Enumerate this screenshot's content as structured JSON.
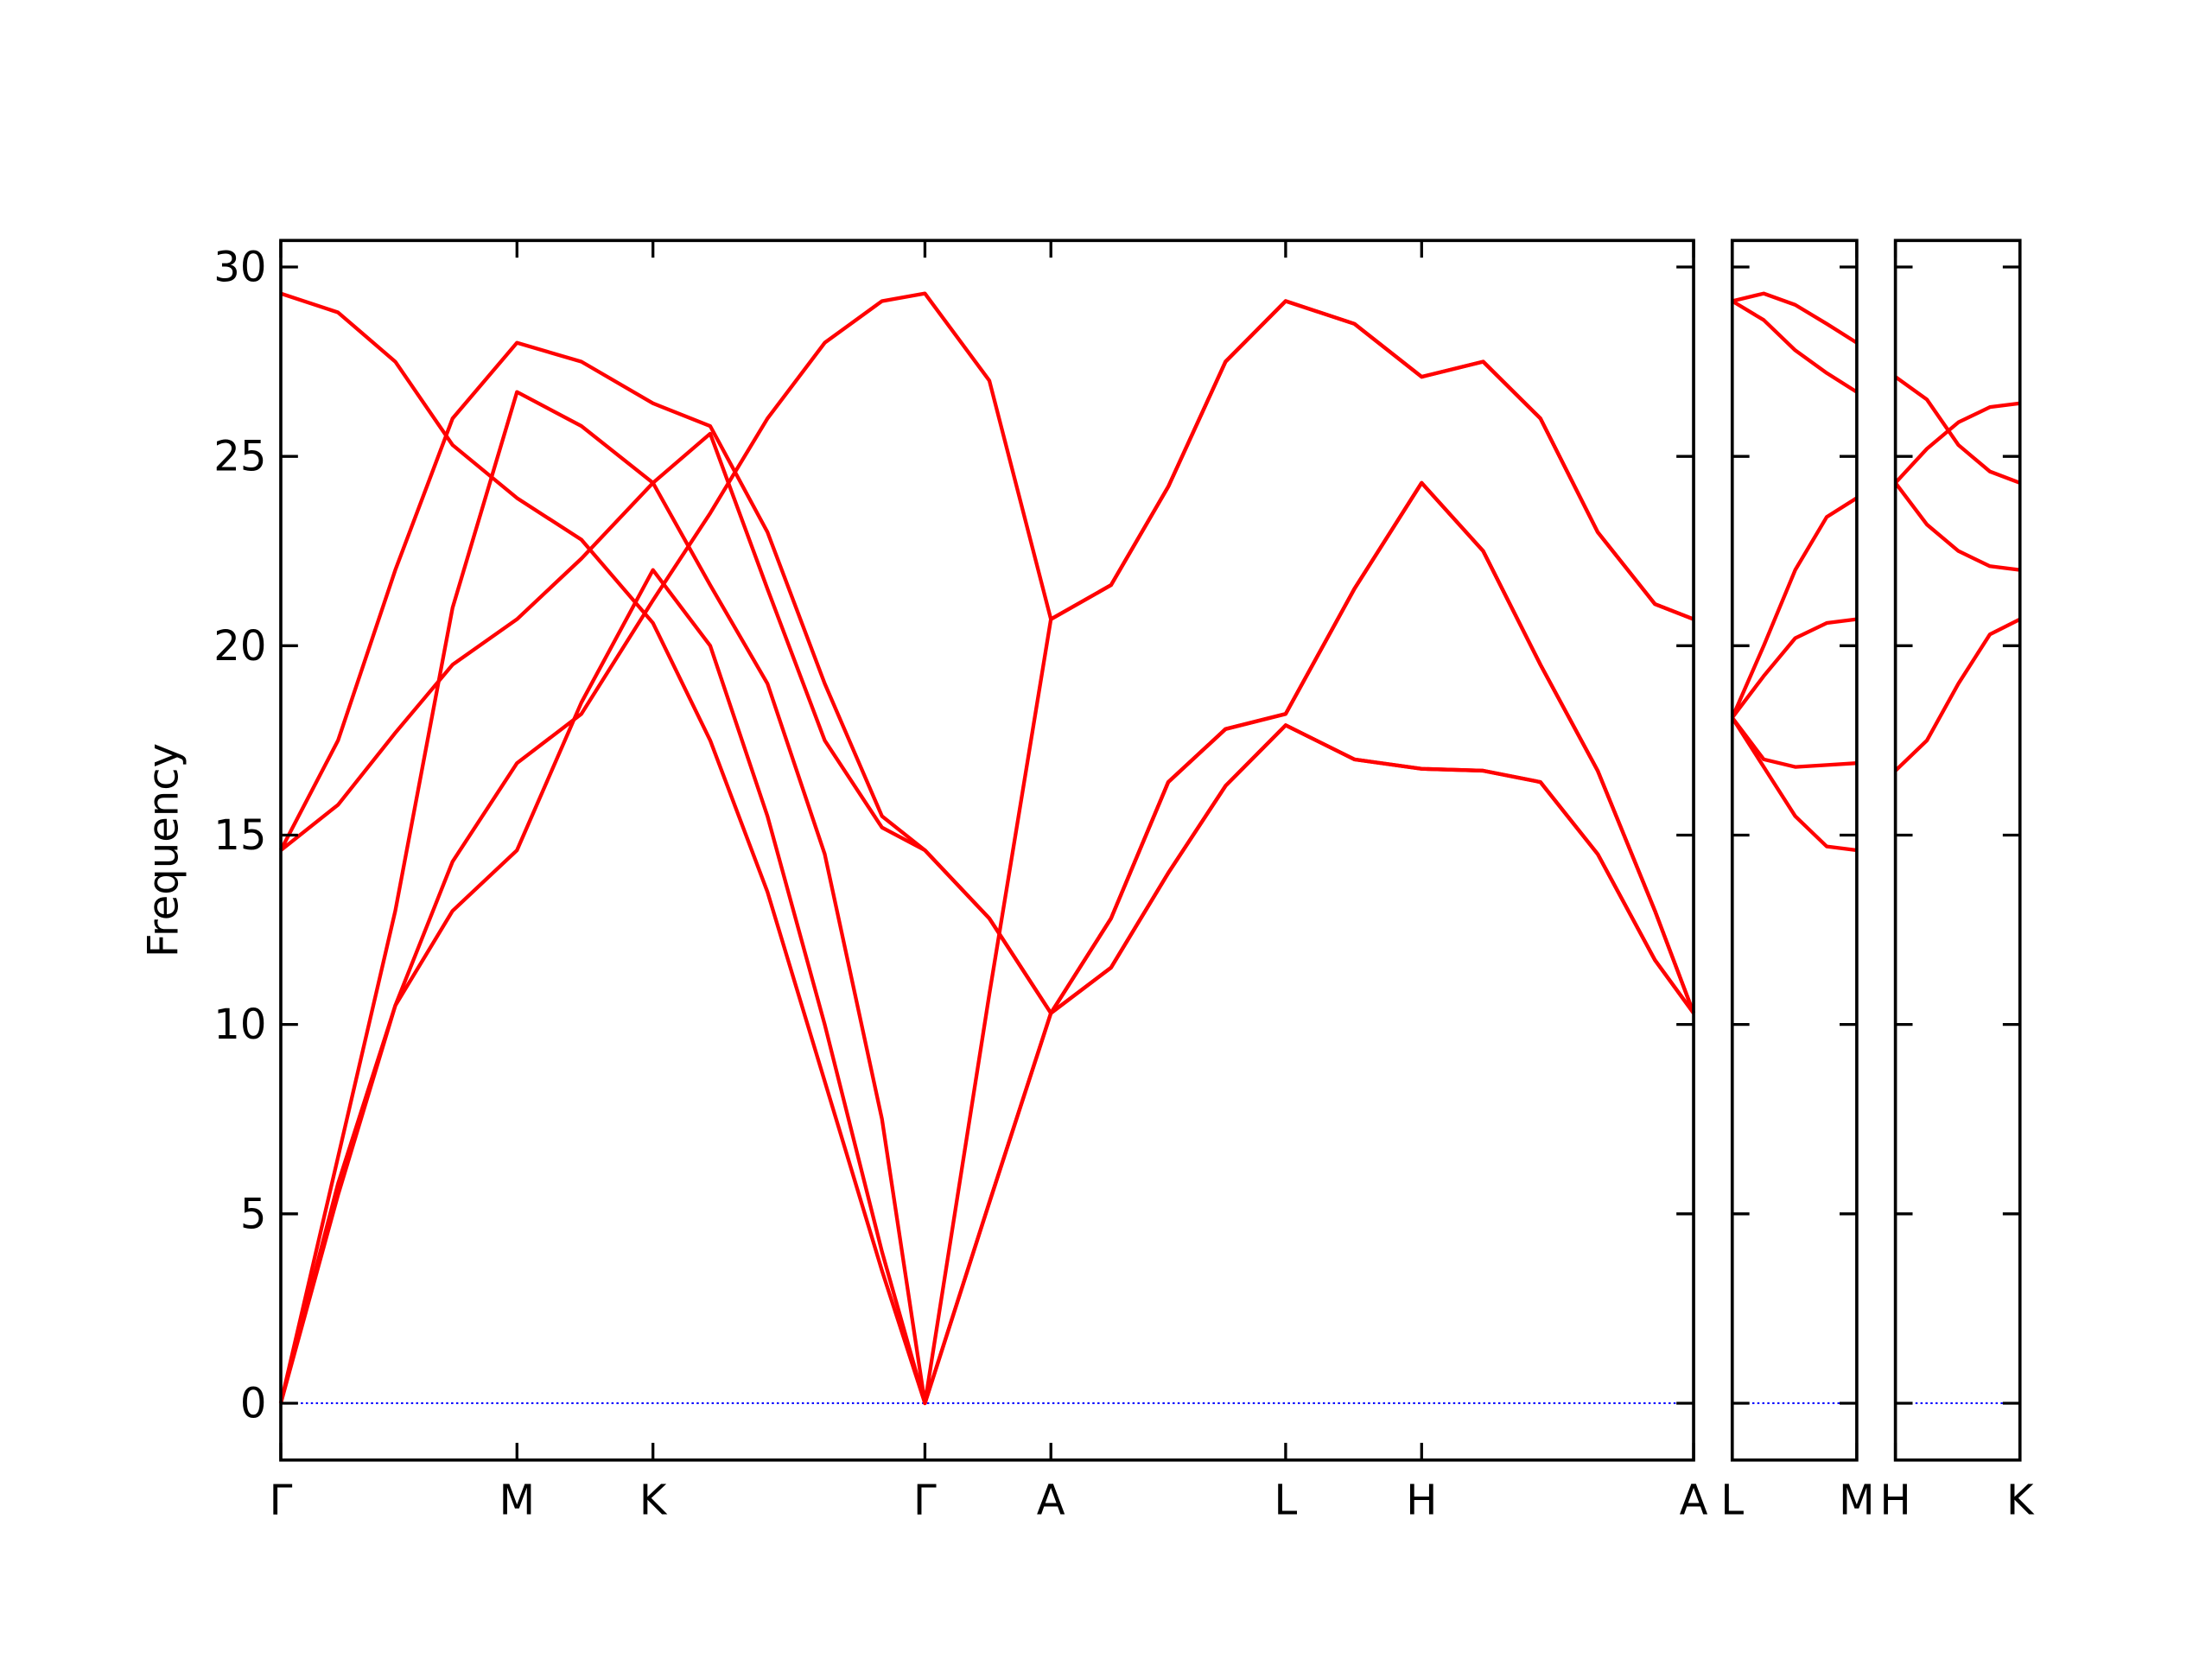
{
  "chart_data": [
    {
      "type": "line",
      "ylabel": "Frequency",
      "ylim": [
        -1.5,
        30.7
      ],
      "yticks": [
        0,
        5,
        10,
        15,
        20,
        25,
        30
      ],
      "xlim": [
        0,
        987
      ],
      "xticks": [
        {
          "value": 0,
          "label": "Γ"
        },
        {
          "value": 165,
          "label": "M"
        },
        {
          "value": 260,
          "label": "K"
        },
        {
          "value": 450,
          "label": "Γ"
        },
        {
          "value": 538,
          "label": "A"
        },
        {
          "value": 702,
          "label": "L"
        },
        {
          "value": 797,
          "label": "H"
        },
        {
          "value": 987,
          "label": "A"
        }
      ],
      "hline": {
        "value": 0,
        "color": "#0000ff"
      },
      "x": [
        0,
        40,
        80,
        120,
        165,
        210,
        260,
        300,
        340,
        380,
        420,
        450,
        495,
        538,
        580,
        620,
        660,
        702,
        750,
        797,
        840,
        880,
        920,
        960,
        987
      ],
      "series": [
        {
          "color": "#ff0000",
          "values": [
            29.3,
            28.8,
            27.5,
            25.3,
            23.9,
            22.8,
            20.6,
            17.5,
            13.5,
            8.5,
            3.5,
            0,
            5.3,
            10.3,
            11.5,
            14.0,
            16.3,
            17.9,
            17.0,
            16.75,
            16.7,
            16.4,
            14.5,
            11.7,
            10.3
          ]
        },
        {
          "color": "#ff0000",
          "values": [
            14.6,
            17.5,
            22.0,
            26.0,
            28.0,
            27.5,
            26.4,
            25.8,
            23.0,
            19.0,
            15.5,
            14.6,
            12.8,
            10.3,
            11.5,
            14.0,
            16.3,
            17.9,
            17.0,
            16.75,
            16.7,
            16.4,
            14.5,
            11.7,
            10.3
          ]
        },
        {
          "color": "#ff0000",
          "values": [
            0,
            6.5,
            13.0,
            21.0,
            26.7,
            25.8,
            24.3,
            25.6,
            21.5,
            17.5,
            15.2,
            14.6,
            12.8,
            10.3,
            12.8,
            16.4,
            17.8,
            18.2,
            21.5,
            24.3,
            22.5,
            19.5,
            16.7,
            13.0,
            10.3
          ]
        },
        {
          "color": "#ff0000",
          "values": [
            14.6,
            15.8,
            17.7,
            19.5,
            20.7,
            22.3,
            24.3,
            21.6,
            19.0,
            14.5,
            7.5,
            0,
            5.3,
            10.3,
            12.8,
            16.4,
            17.8,
            18.2,
            21.5,
            24.3,
            22.5,
            19.5,
            16.7,
            13.0,
            10.3
          ]
        },
        {
          "color": "#ff0000",
          "values": [
            0,
            5.5,
            10.5,
            14.3,
            16.9,
            18.2,
            21.2,
            23.5,
            26.0,
            28.0,
            29.1,
            29.3,
            27.0,
            20.7,
            21.6,
            24.2,
            27.5,
            29.1,
            28.5,
            27.1,
            27.5,
            26.0,
            23.0,
            21.1,
            20.7
          ]
        },
        {
          "color": "#ff0000",
          "values": [
            0,
            5.8,
            10.5,
            13.0,
            14.6,
            18.5,
            22.0,
            20.0,
            15.5,
            10.0,
            4.0,
            0,
            10.8,
            20.7,
            21.6,
            24.2,
            27.5,
            29.1,
            28.5,
            27.1,
            27.5,
            26.0,
            23.0,
            21.1,
            20.7
          ]
        }
      ]
    },
    {
      "type": "line",
      "sharey": true,
      "xlim": [
        0,
        87
      ],
      "xticks": [
        {
          "value": 0,
          "label": "L"
        },
        {
          "value": 87,
          "label": "M"
        }
      ],
      "hline": {
        "value": 0,
        "color": "#0000ff"
      },
      "x": [
        0,
        22,
        44,
        66,
        87
      ],
      "series": [
        {
          "color": "#ff0000",
          "values": [
            29.1,
            29.3,
            29.0,
            28.5,
            28.0
          ]
        },
        {
          "color": "#ff0000",
          "values": [
            29.1,
            28.6,
            27.8,
            27.2,
            26.7
          ]
        },
        {
          "color": "#ff0000",
          "values": [
            18.1,
            20.0,
            22.0,
            23.4,
            23.9
          ]
        },
        {
          "color": "#ff0000",
          "values": [
            18.1,
            19.2,
            20.2,
            20.6,
            20.7
          ]
        },
        {
          "color": "#ff0000",
          "values": [
            18.1,
            17.0,
            16.8,
            16.85,
            16.9
          ]
        },
        {
          "color": "#ff0000",
          "values": [
            18.1,
            16.8,
            15.5,
            14.7,
            14.6
          ]
        }
      ]
    },
    {
      "type": "line",
      "sharey": true,
      "xlim": [
        0,
        87
      ],
      "xticks": [
        {
          "value": 0,
          "label": "H"
        },
        {
          "value": 87,
          "label": "K"
        }
      ],
      "hline": {
        "value": 0,
        "color": "#0000ff"
      },
      "x": [
        0,
        22,
        44,
        66,
        87
      ],
      "series": [
        {
          "color": "#ff0000",
          "values": [
            27.1,
            26.5,
            25.3,
            24.6,
            24.3
          ]
        },
        {
          "color": "#ff0000",
          "values": [
            24.3,
            25.2,
            25.9,
            26.3,
            26.4
          ]
        },
        {
          "color": "#ff0000",
          "values": [
            24.3,
            23.2,
            22.5,
            22.1,
            22.0
          ]
        },
        {
          "color": "#ff0000",
          "values": [
            16.7,
            17.5,
            19.0,
            20.3,
            20.7
          ]
        }
      ]
    }
  ]
}
